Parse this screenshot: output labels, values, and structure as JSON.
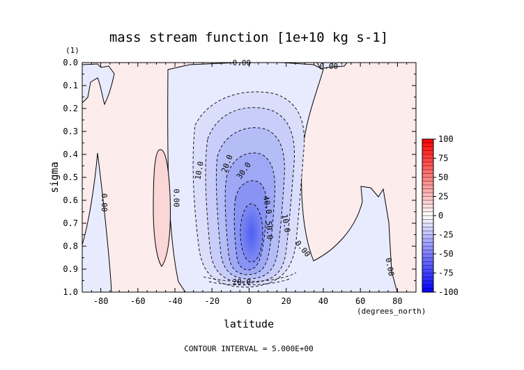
{
  "chart_data": {
    "type": "heatmap",
    "title": "mass stream function [1e+10 kg s-1]",
    "xlabel": "latitude",
    "ylabel": "sigma",
    "x_units": "(degrees_north)",
    "y_units": "(1)",
    "xlim": [
      -90,
      90
    ],
    "ylim": [
      0.0,
      1.0
    ],
    "y_inverted": true,
    "xticks": [
      "-80",
      "-60",
      "-40",
      "-20",
      "0",
      "20",
      "40",
      "60",
      "80"
    ],
    "xtick_values": [
      -80,
      -60,
      -40,
      -20,
      0,
      20,
      40,
      60,
      80
    ],
    "yticks": [
      "0.0",
      "0.1",
      "0.2",
      "0.3",
      "0.4",
      "0.5",
      "0.6",
      "0.7",
      "0.8",
      "0.9",
      "1.0"
    ],
    "ytick_values": [
      0.0,
      0.1,
      0.2,
      0.3,
      0.4,
      0.5,
      0.6,
      0.7,
      0.8,
      0.9,
      1.0
    ],
    "colorbar": {
      "range": [
        -100,
        100
      ],
      "ticks": [
        "100",
        "75",
        "50",
        "25",
        "0",
        "-25",
        "-50",
        "-75",
        "-100"
      ],
      "tick_values": [
        100,
        75,
        50,
        25,
        0,
        -25,
        -50,
        -75,
        -100
      ],
      "low_color": "#0000ff",
      "mid_color": "#ffffff",
      "high_color": "#ff0000"
    },
    "min_cell": {
      "lat": 4,
      "sigma": 0.75,
      "value": -57
    },
    "contour_labels": [
      {
        "text": "0.00",
        "lat": -4,
        "sigma": 0.0
      },
      {
        "text": "0.00",
        "lat": 43,
        "sigma": 0.015
      },
      {
        "text": "0.00",
        "lat": -78,
        "sigma": 0.61,
        "rotate": 90
      },
      {
        "text": "0.00",
        "lat": -39,
        "sigma": 0.59,
        "rotate": 90
      },
      {
        "text": "10.0",
        "lat": -27,
        "sigma": 0.47,
        "rotate": -80
      },
      {
        "text": "20.0",
        "lat": -12,
        "sigma": 0.44,
        "rotate": -70
      },
      {
        "text": "30.0",
        "lat": -3,
        "sigma": 0.47,
        "rotate": -55
      },
      {
        "text": "40.0",
        "lat": 10,
        "sigma": 0.62,
        "rotate": 80
      },
      {
        "text": "50.0",
        "lat": 11,
        "sigma": 0.73,
        "rotate": 85
      },
      {
        "text": "10.0",
        "lat": 20,
        "sigma": 0.7,
        "rotate": 80
      },
      {
        "text": "0.00",
        "lat": 29,
        "sigma": 0.81,
        "rotate": 50
      },
      {
        "text": "20.0",
        "lat": -4,
        "sigma": 0.955
      },
      {
        "text": "0.00",
        "lat": 76,
        "sigma": 0.89,
        "rotate": 80
      }
    ],
    "contour_interval": 5.0,
    "footer": "CONTOUR INTERVAL = 5.000E+00"
  }
}
